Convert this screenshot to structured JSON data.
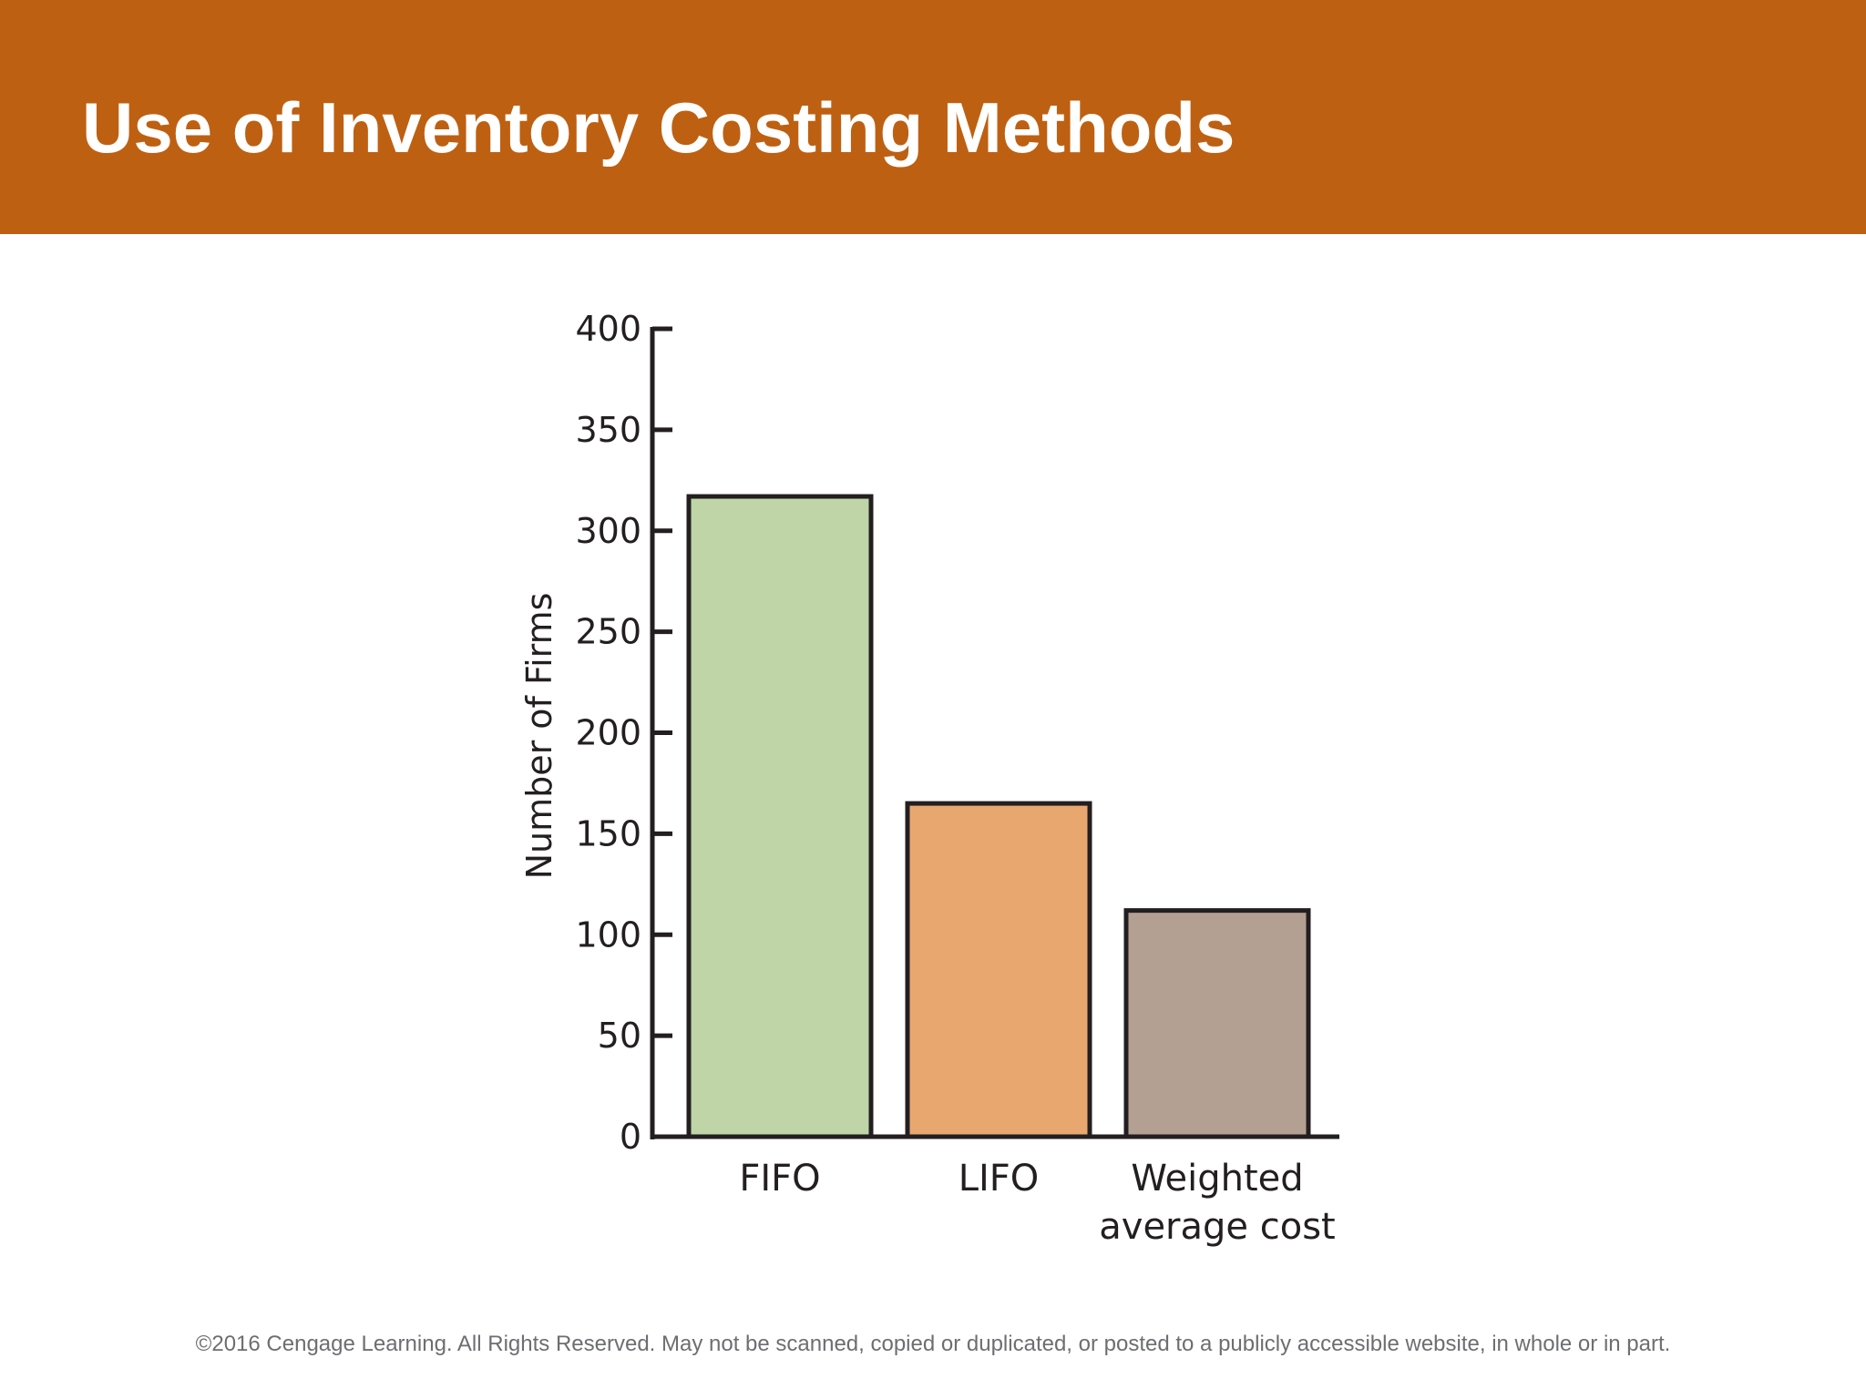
{
  "slide": {
    "title": "Use of Inventory Costing Methods",
    "footer": "©2016 Cengage Learning. All Rights Reserved. May not be scanned, copied or duplicated, or posted to a publicly accessible website, in whole or in part.",
    "header_color": "#be6012"
  },
  "chart_data": {
    "type": "bar",
    "title": "",
    "xlabel": "",
    "ylabel": "Number of Firms",
    "categories": [
      [
        "FIFO"
      ],
      [
        "LIFO"
      ],
      [
        "Weighted",
        "average cost"
      ]
    ],
    "values": [
      317,
      165,
      112
    ],
    "colors": [
      "#bfd5a8",
      "#e8a76f",
      "#b49f93"
    ],
    "ylim": [
      0,
      400
    ],
    "yticks": [
      0,
      50,
      100,
      150,
      200,
      250,
      300,
      350,
      400
    ],
    "grid": false,
    "legend": "none"
  }
}
